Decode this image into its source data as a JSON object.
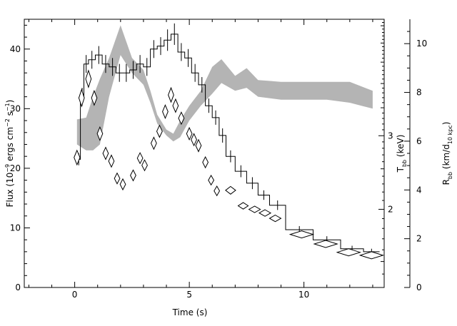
{
  "chart_data": {
    "type": "line",
    "x_axis": {
      "label": "Time (s)",
      "range": [
        -2.2,
        13.5
      ],
      "ticks": [
        0,
        5,
        10
      ],
      "tick_labels": [
        "0",
        "5",
        "10"
      ]
    },
    "left_axis": {
      "label_parts": [
        "Flux (10",
        "−9",
        " ergs cm",
        "−2",
        " s",
        "−1",
        ")"
      ],
      "range": [
        0,
        45
      ],
      "ticks": [
        0,
        10,
        20,
        30,
        40
      ],
      "tick_labels": [
        "0",
        "10",
        "20",
        "30",
        "40"
      ]
    },
    "temperature_axis": {
      "label_main": "T",
      "label_sub": "bb",
      "label_unit": " (keV)",
      "scale": "log",
      "ticks": [
        2,
        3
      ],
      "tick_labels": [
        "2",
        "3"
      ],
      "range": [
        1.3,
        5.7
      ]
    },
    "radius_axis": {
      "label_main": "R",
      "label_sub": "bb",
      "label_unit": " (km/d",
      "label_sub2": "10 kpc",
      "label_end": ")",
      "range": [
        0,
        11
      ],
      "ticks": [
        0,
        2,
        4,
        6,
        8,
        10
      ],
      "tick_labels": [
        "0",
        "2",
        "4",
        "6",
        "8",
        "10"
      ]
    },
    "series": [
      {
        "kind": "flux-histogram",
        "color": "#000000",
        "bins": [
          {
            "x0": 0.1,
            "x1": 0.25,
            "y": 21.5,
            "err": 1.0
          },
          {
            "x0": 0.25,
            "x1": 0.4,
            "y": 32,
            "err": 1.5
          },
          {
            "x0": 0.4,
            "x1": 0.6,
            "y": 37.5,
            "err": 1.5
          },
          {
            "x0": 0.6,
            "x1": 0.9,
            "y": 38.2,
            "err": 1.5
          },
          {
            "x0": 0.9,
            "x1": 1.2,
            "y": 39,
            "err": 1.5
          },
          {
            "x0": 1.2,
            "x1": 1.5,
            "y": 37.5,
            "err": 1.5
          },
          {
            "x0": 1.5,
            "x1": 1.8,
            "y": 37,
            "err": 1.5
          },
          {
            "x0": 1.8,
            "x1": 2.1,
            "y": 36,
            "err": 1.5
          },
          {
            "x0": 2.1,
            "x1": 2.4,
            "y": 36,
            "err": 1.5
          },
          {
            "x0": 2.4,
            "x1": 2.7,
            "y": 36.5,
            "err": 1.5
          },
          {
            "x0": 2.7,
            "x1": 3.0,
            "y": 37.5,
            "err": 1.5
          },
          {
            "x0": 3.0,
            "x1": 3.3,
            "y": 37,
            "err": 1.5
          },
          {
            "x0": 3.3,
            "x1": 3.6,
            "y": 40,
            "err": 1.5
          },
          {
            "x0": 3.6,
            "x1": 3.9,
            "y": 40.5,
            "err": 1.5
          },
          {
            "x0": 3.9,
            "x1": 4.2,
            "y": 41.5,
            "err": 1.8
          },
          {
            "x0": 4.2,
            "x1": 4.5,
            "y": 42.5,
            "err": 1.8
          },
          {
            "x0": 4.5,
            "x1": 4.8,
            "y": 39.5,
            "err": 1.5
          },
          {
            "x0": 4.8,
            "x1": 5.1,
            "y": 38.5,
            "err": 1.5
          },
          {
            "x0": 5.1,
            "x1": 5.4,
            "y": 36,
            "err": 1.5
          },
          {
            "x0": 5.4,
            "x1": 5.7,
            "y": 34,
            "err": 1.3
          },
          {
            "x0": 5.7,
            "x1": 6.0,
            "y": 30.5,
            "err": 1.2
          },
          {
            "x0": 6.0,
            "x1": 6.3,
            "y": 28.5,
            "err": 1.2
          },
          {
            "x0": 6.3,
            "x1": 6.6,
            "y": 25.5,
            "err": 1.2
          },
          {
            "x0": 6.6,
            "x1": 7.0,
            "y": 22,
            "err": 1.0
          },
          {
            "x0": 7.0,
            "x1": 7.5,
            "y": 19.5,
            "err": 1.0
          },
          {
            "x0": 7.5,
            "x1": 8.0,
            "y": 17.5,
            "err": 1.0
          },
          {
            "x0": 8.0,
            "x1": 8.5,
            "y": 15.5,
            "err": 0.8
          },
          {
            "x0": 8.5,
            "x1": 9.2,
            "y": 13.8,
            "err": 0.8
          },
          {
            "x0": 9.2,
            "x1": 10.4,
            "y": 9.7,
            "err": 0.6
          },
          {
            "x0": 10.4,
            "x1": 11.6,
            "y": 8,
            "err": 0.6
          },
          {
            "x0": 11.6,
            "x1": 12.6,
            "y": 6.5,
            "err": 0.5
          },
          {
            "x0": 12.6,
            "x1": 13.3,
            "y": 6,
            "err": 0.5
          }
        ]
      },
      {
        "kind": "temperature-diamonds",
        "color": "#000000",
        "points": [
          {
            "x": 0.1,
            "y": 21.8,
            "hw": 0.13,
            "hh": 1.2
          },
          {
            "x": 0.3,
            "y": 31.8,
            "hw": 0.12,
            "hh": 1.4
          },
          {
            "x": 0.6,
            "y": 35,
            "hw": 0.12,
            "hh": 1.4
          },
          {
            "x": 0.85,
            "y": 31.8,
            "hw": 0.12,
            "hh": 1.2
          },
          {
            "x": 1.1,
            "y": 25.8,
            "hw": 0.12,
            "hh": 1.1
          },
          {
            "x": 1.35,
            "y": 22.5,
            "hw": 0.12,
            "hh": 1.0
          },
          {
            "x": 1.6,
            "y": 21.2,
            "hw": 0.12,
            "hh": 1.0
          },
          {
            "x": 1.85,
            "y": 18.3,
            "hw": 0.12,
            "hh": 0.9
          },
          {
            "x": 2.1,
            "y": 17.3,
            "hw": 0.12,
            "hh": 0.9
          },
          {
            "x": 2.55,
            "y": 18.8,
            "hw": 0.12,
            "hh": 0.9
          },
          {
            "x": 2.85,
            "y": 21.7,
            "hw": 0.12,
            "hh": 0.9
          },
          {
            "x": 3.05,
            "y": 20.5,
            "hw": 0.12,
            "hh": 0.9
          },
          {
            "x": 3.45,
            "y": 24.2,
            "hw": 0.12,
            "hh": 1.0
          },
          {
            "x": 3.7,
            "y": 26.2,
            "hw": 0.12,
            "hh": 1.0
          },
          {
            "x": 3.95,
            "y": 29.5,
            "hw": 0.12,
            "hh": 1.1
          },
          {
            "x": 4.2,
            "y": 32.3,
            "hw": 0.12,
            "hh": 1.2
          },
          {
            "x": 4.4,
            "y": 30.5,
            "hw": 0.12,
            "hh": 1.1
          },
          {
            "x": 4.65,
            "y": 28.4,
            "hw": 0.12,
            "hh": 1.0
          },
          {
            "x": 5.0,
            "y": 25.8,
            "hw": 0.12,
            "hh": 1.0
          },
          {
            "x": 5.2,
            "y": 24.8,
            "hw": 0.12,
            "hh": 1.0
          },
          {
            "x": 5.4,
            "y": 23.8,
            "hw": 0.12,
            "hh": 1.0
          },
          {
            "x": 5.7,
            "y": 21,
            "hw": 0.12,
            "hh": 0.9
          },
          {
            "x": 5.95,
            "y": 18,
            "hw": 0.12,
            "hh": 0.8
          },
          {
            "x": 6.2,
            "y": 16.2,
            "hw": 0.12,
            "hh": 0.8
          },
          {
            "x": 6.8,
            "y": 16.3,
            "hw": 0.22,
            "hh": 0.65
          },
          {
            "x": 7.35,
            "y": 13.7,
            "hw": 0.22,
            "hh": 0.55
          },
          {
            "x": 7.85,
            "y": 13.1,
            "hw": 0.25,
            "hh": 0.55
          },
          {
            "x": 8.3,
            "y": 12.5,
            "hw": 0.25,
            "hh": 0.55
          },
          {
            "x": 8.75,
            "y": 11.6,
            "hw": 0.25,
            "hh": 0.55
          },
          {
            "x": 9.9,
            "y": 8.9,
            "hw": 0.5,
            "hh": 0.6
          },
          {
            "x": 10.95,
            "y": 7.3,
            "hw": 0.5,
            "hh": 0.6
          },
          {
            "x": 11.95,
            "y": 5.9,
            "hw": 0.5,
            "hh": 0.6
          },
          {
            "x": 12.95,
            "y": 5.4,
            "hw": 0.5,
            "hh": 0.6
          }
        ]
      },
      {
        "kind": "radius-band",
        "color": "#b4b4b4",
        "upper": [
          [
            0.1,
            28.2
          ],
          [
            0.5,
            28.5
          ],
          [
            0.8,
            32
          ],
          [
            1.1,
            35
          ],
          [
            1.5,
            38.5
          ],
          [
            2.0,
            44
          ],
          [
            2.5,
            38.5
          ],
          [
            3.0,
            36.5
          ],
          [
            3.3,
            33
          ],
          [
            3.6,
            29
          ],
          [
            4.0,
            26.5
          ],
          [
            4.3,
            25.8
          ],
          [
            4.6,
            28
          ],
          [
            5.0,
            30.5
          ],
          [
            5.5,
            33
          ],
          [
            6.0,
            37
          ],
          [
            6.4,
            38.3
          ],
          [
            7.0,
            35.5
          ],
          [
            7.5,
            36.8
          ],
          [
            8.0,
            34.8
          ],
          [
            9.0,
            34.5
          ],
          [
            10.0,
            34.5
          ],
          [
            11.0,
            34.5
          ],
          [
            12.0,
            34.5
          ],
          [
            13.0,
            33
          ]
        ],
        "lower": [
          [
            13.0,
            30
          ],
          [
            12.0,
            31
          ],
          [
            11.0,
            31.5
          ],
          [
            10.0,
            31.5
          ],
          [
            9.0,
            31.5
          ],
          [
            8.0,
            32
          ],
          [
            7.5,
            33.5
          ],
          [
            7.0,
            33
          ],
          [
            6.4,
            34.3
          ],
          [
            6.0,
            32.5
          ],
          [
            5.5,
            30.5
          ],
          [
            5.0,
            28
          ],
          [
            4.6,
            25.2
          ],
          [
            4.3,
            24.5
          ],
          [
            4.0,
            25.5
          ],
          [
            3.6,
            27.5
          ],
          [
            3.3,
            31
          ],
          [
            3.0,
            34
          ],
          [
            2.5,
            36
          ],
          [
            2.0,
            39
          ],
          [
            1.5,
            32
          ],
          [
            1.1,
            24
          ],
          [
            0.8,
            23
          ],
          [
            0.5,
            23
          ],
          [
            0.1,
            24
          ]
        ]
      }
    ],
    "grid": false,
    "legend": "none"
  }
}
